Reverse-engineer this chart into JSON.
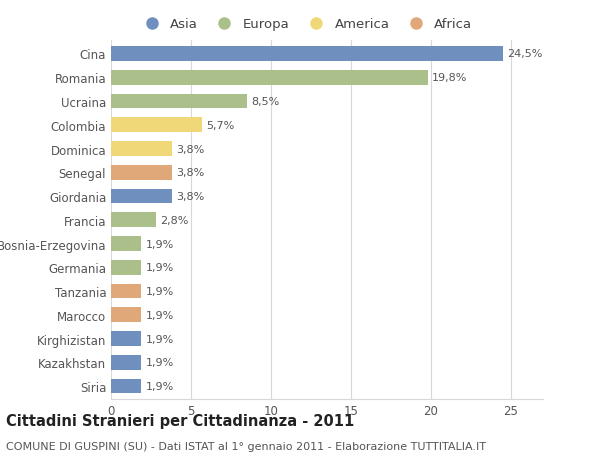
{
  "countries": [
    "Cina",
    "Romania",
    "Ucraina",
    "Colombia",
    "Dominica",
    "Senegal",
    "Giordania",
    "Francia",
    "Bosnia-Erzegovina",
    "Germania",
    "Tanzania",
    "Marocco",
    "Kirghizistan",
    "Kazakhstan",
    "Siria"
  ],
  "values": [
    24.5,
    19.8,
    8.5,
    5.7,
    3.8,
    3.8,
    3.8,
    2.8,
    1.9,
    1.9,
    1.9,
    1.9,
    1.9,
    1.9,
    1.9
  ],
  "labels": [
    "24,5%",
    "19,8%",
    "8,5%",
    "5,7%",
    "3,8%",
    "3,8%",
    "3,8%",
    "2,8%",
    "1,9%",
    "1,9%",
    "1,9%",
    "1,9%",
    "1,9%",
    "1,9%",
    "1,9%"
  ],
  "continents": [
    "Asia",
    "Europa",
    "Europa",
    "America",
    "America",
    "Africa",
    "Asia",
    "Europa",
    "Europa",
    "Europa",
    "Africa",
    "Africa",
    "Asia",
    "Asia",
    "Asia"
  ],
  "colors": {
    "Asia": "#6f8fbe",
    "Europa": "#aabf8a",
    "America": "#f0d878",
    "Africa": "#e0a878"
  },
  "xlim": [
    0,
    27
  ],
  "xticks": [
    0,
    5,
    10,
    15,
    20,
    25
  ],
  "title": "Cittadini Stranieri per Cittadinanza - 2011",
  "subtitle": "COMUNE DI GUSPINI (SU) - Dati ISTAT al 1° gennaio 2011 - Elaborazione TUTTITALIA.IT",
  "background_color": "#ffffff",
  "grid_color": "#d8d8d8",
  "bar_height": 0.62,
  "title_fontsize": 10.5,
  "subtitle_fontsize": 8,
  "label_fontsize": 8,
  "tick_fontsize": 8.5,
  "legend_fontsize": 9.5
}
